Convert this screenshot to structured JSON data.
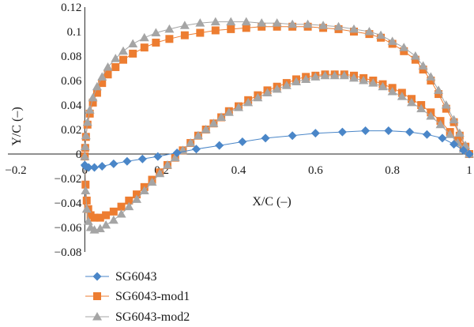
{
  "chart_data": {
    "type": "scatter",
    "title": "",
    "xlabel": "X/C (–)",
    "ylabel": "Y/C (–)",
    "xlim": [
      -0.2,
      1.0
    ],
    "ylim": [
      -0.08,
      0.12
    ],
    "xticks": [
      "−0.2",
      "0",
      "0.2",
      "0.4",
      "0.6",
      "0.8",
      "1"
    ],
    "yticks": [
      "−0.08",
      "−0.06",
      "−0.04",
      "−0.02",
      "0",
      "0.02",
      "0.04",
      "0.06",
      "0.08",
      "0.1",
      "0.12"
    ],
    "xtick_values": [
      -0.2,
      0,
      0.2,
      0.4,
      0.6,
      0.8,
      1.0
    ],
    "ytick_values": [
      -0.08,
      -0.06,
      -0.04,
      -0.02,
      0,
      0.02,
      0.04,
      0.06,
      0.08,
      0.1,
      0.12
    ],
    "grid": false,
    "legend_position": "bottom-left",
    "series": [
      {
        "name": "SG6043",
        "color": "#4a86c8",
        "marker": "diamond",
        "upper": [
          [
            1,
            0
          ],
          [
            0.985,
            0.003
          ],
          [
            0.96,
            0.008
          ],
          [
            0.93,
            0.013
          ],
          [
            0.89,
            0.016
          ],
          [
            0.845,
            0.018
          ],
          [
            0.79,
            0.019
          ],
          [
            0.73,
            0.019
          ],
          [
            0.67,
            0.018
          ],
          [
            0.6,
            0.017
          ],
          [
            0.54,
            0.015
          ],
          [
            0.47,
            0.013
          ],
          [
            0.41,
            0.01
          ],
          [
            0.35,
            0.007
          ],
          [
            0.29,
            0.004
          ],
          [
            0.24,
            0.001
          ],
          [
            0.19,
            -0.002
          ],
          [
            0.15,
            -0.004
          ],
          [
            0.11,
            -0.006
          ],
          [
            0.075,
            -0.008
          ],
          [
            0.045,
            -0.01
          ],
          [
            0.025,
            -0.011
          ],
          [
            0.01,
            -0.011
          ],
          [
            0.002,
            -0.01
          ],
          [
            0,
            -0.009
          ]
        ],
        "lower": []
      },
      {
        "name": "SG6043-mod1",
        "color": "#ed7d31",
        "marker": "square",
        "upper": [
          [
            1,
            0
          ],
          [
            0.99,
            0.006
          ],
          [
            0.975,
            0.015
          ],
          [
            0.96,
            0.026
          ],
          [
            0.94,
            0.037
          ],
          [
            0.92,
            0.049
          ],
          [
            0.9,
            0.06
          ],
          [
            0.88,
            0.069
          ],
          [
            0.86,
            0.077
          ],
          [
            0.83,
            0.084
          ],
          [
            0.8,
            0.09
          ],
          [
            0.77,
            0.095
          ],
          [
            0.74,
            0.098
          ],
          [
            0.7,
            0.1
          ],
          [
            0.66,
            0.102
          ],
          [
            0.62,
            0.103
          ],
          [
            0.58,
            0.104
          ],
          [
            0.54,
            0.104
          ],
          [
            0.5,
            0.104
          ],
          [
            0.46,
            0.104
          ],
          [
            0.42,
            0.103
          ],
          [
            0.38,
            0.102
          ],
          [
            0.34,
            0.101
          ],
          [
            0.3,
            0.099
          ],
          [
            0.26,
            0.097
          ],
          [
            0.22,
            0.094
          ],
          [
            0.185,
            0.091
          ],
          [
            0.155,
            0.087
          ],
          [
            0.125,
            0.082
          ],
          [
            0.1,
            0.077
          ],
          [
            0.08,
            0.071
          ],
          [
            0.06,
            0.065
          ],
          [
            0.045,
            0.058
          ],
          [
            0.032,
            0.05
          ],
          [
            0.021,
            0.042
          ],
          [
            0.013,
            0.033
          ],
          [
            0.007,
            0.024
          ],
          [
            0.003,
            0.014
          ],
          [
            0.001,
            0.005
          ],
          [
            0,
            -0.002
          ]
        ],
        "lower": [
          [
            0.002,
            -0.025
          ],
          [
            0.005,
            -0.038
          ],
          [
            0.009,
            -0.045
          ],
          [
            0.015,
            -0.05
          ],
          [
            0.025,
            -0.052
          ],
          [
            0.04,
            -0.052
          ],
          [
            0.055,
            -0.05
          ],
          [
            0.075,
            -0.047
          ],
          [
            0.095,
            -0.043
          ],
          [
            0.115,
            -0.038
          ],
          [
            0.135,
            -0.033
          ],
          [
            0.155,
            -0.027
          ],
          [
            0.175,
            -0.021
          ],
          [
            0.195,
            -0.015
          ],
          [
            0.215,
            -0.009
          ],
          [
            0.235,
            -0.003
          ],
          [
            0.255,
            0.003
          ],
          [
            0.275,
            0.009
          ],
          [
            0.295,
            0.015
          ],
          [
            0.315,
            0.02
          ],
          [
            0.335,
            0.025
          ],
          [
            0.355,
            0.03
          ],
          [
            0.375,
            0.035
          ],
          [
            0.4,
            0.039
          ],
          [
            0.425,
            0.044
          ],
          [
            0.45,
            0.048
          ],
          [
            0.475,
            0.052
          ],
          [
            0.5,
            0.055
          ],
          [
            0.525,
            0.058
          ],
          [
            0.55,
            0.061
          ],
          [
            0.575,
            0.063
          ],
          [
            0.6,
            0.064
          ],
          [
            0.625,
            0.065
          ],
          [
            0.65,
            0.065
          ],
          [
            0.675,
            0.065
          ],
          [
            0.7,
            0.064
          ],
          [
            0.725,
            0.062
          ],
          [
            0.75,
            0.06
          ],
          [
            0.775,
            0.057
          ],
          [
            0.8,
            0.054
          ],
          [
            0.825,
            0.05
          ],
          [
            0.85,
            0.045
          ],
          [
            0.875,
            0.04
          ],
          [
            0.9,
            0.034
          ],
          [
            0.925,
            0.027
          ],
          [
            0.95,
            0.018
          ],
          [
            0.97,
            0.011
          ],
          [
            0.985,
            0.005
          ]
        ]
      },
      {
        "name": "SG6043-mod2",
        "color": "#a5a5a5",
        "marker": "triangle",
        "upper": [
          [
            1,
            0
          ],
          [
            0.99,
            0.007
          ],
          [
            0.975,
            0.017
          ],
          [
            0.96,
            0.028
          ],
          [
            0.94,
            0.04
          ],
          [
            0.92,
            0.052
          ],
          [
            0.9,
            0.063
          ],
          [
            0.88,
            0.072
          ],
          [
            0.86,
            0.08
          ],
          [
            0.83,
            0.087
          ],
          [
            0.8,
            0.092
          ],
          [
            0.77,
            0.097
          ],
          [
            0.74,
            0.1
          ],
          [
            0.7,
            0.102
          ],
          [
            0.66,
            0.104
          ],
          [
            0.62,
            0.105
          ],
          [
            0.58,
            0.106
          ],
          [
            0.54,
            0.106
          ],
          [
            0.5,
            0.107
          ],
          [
            0.46,
            0.107
          ],
          [
            0.42,
            0.108
          ],
          [
            0.38,
            0.108
          ],
          [
            0.34,
            0.108
          ],
          [
            0.3,
            0.107
          ],
          [
            0.26,
            0.105
          ],
          [
            0.22,
            0.102
          ],
          [
            0.185,
            0.099
          ],
          [
            0.155,
            0.095
          ],
          [
            0.125,
            0.09
          ],
          [
            0.1,
            0.084
          ],
          [
            0.08,
            0.078
          ],
          [
            0.06,
            0.071
          ],
          [
            0.045,
            0.063
          ],
          [
            0.032,
            0.055
          ],
          [
            0.021,
            0.046
          ],
          [
            0.013,
            0.036
          ],
          [
            0.007,
            0.026
          ],
          [
            0.003,
            0.015
          ],
          [
            0.001,
            0.006
          ],
          [
            0,
            -0.002
          ]
        ],
        "lower": [
          [
            0.002,
            -0.03
          ],
          [
            0.005,
            -0.045
          ],
          [
            0.009,
            -0.055
          ],
          [
            0.015,
            -0.06
          ],
          [
            0.025,
            -0.062
          ],
          [
            0.04,
            -0.061
          ],
          [
            0.055,
            -0.058
          ],
          [
            0.075,
            -0.054
          ],
          [
            0.095,
            -0.049
          ],
          [
            0.115,
            -0.043
          ],
          [
            0.135,
            -0.037
          ],
          [
            0.155,
            -0.03
          ],
          [
            0.175,
            -0.023
          ],
          [
            0.195,
            -0.016
          ],
          [
            0.215,
            -0.009
          ],
          [
            0.235,
            -0.003
          ],
          [
            0.255,
            0.003
          ],
          [
            0.275,
            0.009
          ],
          [
            0.295,
            0.015
          ],
          [
            0.315,
            0.02
          ],
          [
            0.335,
            0.025
          ],
          [
            0.355,
            0.03
          ],
          [
            0.375,
            0.034
          ],
          [
            0.4,
            0.038
          ],
          [
            0.425,
            0.042
          ],
          [
            0.45,
            0.046
          ],
          [
            0.475,
            0.05
          ],
          [
            0.5,
            0.053
          ],
          [
            0.525,
            0.056
          ],
          [
            0.55,
            0.059
          ],
          [
            0.575,
            0.061
          ],
          [
            0.6,
            0.063
          ],
          [
            0.625,
            0.064
          ],
          [
            0.65,
            0.064
          ],
          [
            0.675,
            0.064
          ],
          [
            0.7,
            0.062
          ],
          [
            0.725,
            0.06
          ],
          [
            0.75,
            0.058
          ],
          [
            0.775,
            0.055
          ],
          [
            0.8,
            0.051
          ],
          [
            0.825,
            0.047
          ],
          [
            0.85,
            0.042
          ],
          [
            0.875,
            0.037
          ],
          [
            0.9,
            0.031
          ],
          [
            0.925,
            0.024
          ],
          [
            0.95,
            0.016
          ],
          [
            0.97,
            0.009
          ],
          [
            0.985,
            0.004
          ]
        ]
      }
    ]
  }
}
